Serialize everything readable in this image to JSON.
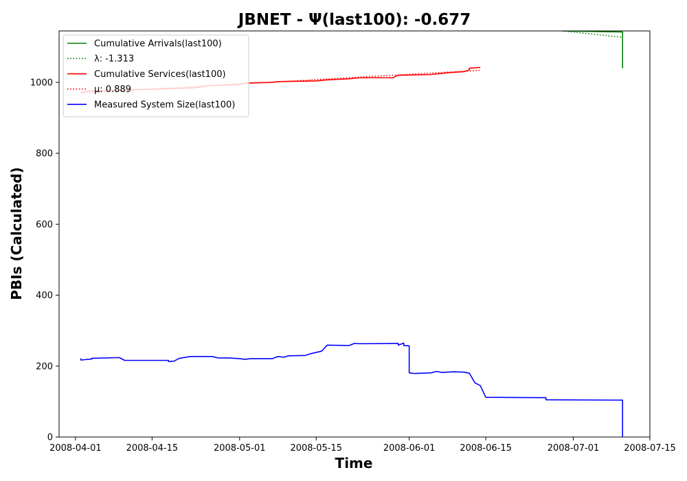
{
  "chart_data": {
    "type": "line",
    "title": "JBNET -  Ψ(last100): -0.677",
    "xlabel": "Time",
    "ylabel": "PBIs (Calculated)",
    "x_type": "date",
    "xlim": [
      "2008-03-29",
      "2008-07-15"
    ],
    "ylim": [
      0,
      1145
    ],
    "grid": false,
    "legend_position": "top-left",
    "x_ticks": [
      "2008-04-01",
      "2008-04-15",
      "2008-05-01",
      "2008-05-15",
      "2008-06-01",
      "2008-06-15",
      "2008-07-01",
      "2008-07-15"
    ],
    "y_ticks": [
      0,
      200,
      400,
      600,
      800,
      1000
    ],
    "series": [
      {
        "name": "Cumulative Arrivals(last100)",
        "color": "#008000",
        "style": "solid",
        "points": [
          [
            "2008-06-29",
            1145
          ],
          [
            "2008-07-10",
            1142
          ],
          [
            "2008-07-10",
            1040
          ]
        ]
      },
      {
        "name": "λ: -1.313",
        "color": "#008000",
        "style": "dotted",
        "points": [
          [
            "2008-06-29",
            1145
          ],
          [
            "2008-07-10",
            1127
          ]
        ]
      },
      {
        "name": "Cumulative Services(last100)",
        "color": "#ff0000",
        "style": "solid",
        "points": [
          [
            "2008-04-02",
            970
          ],
          [
            "2008-04-03",
            975
          ],
          [
            "2008-04-09",
            978
          ],
          [
            "2008-04-16",
            981
          ],
          [
            "2008-04-23",
            985
          ],
          [
            "2008-04-25",
            990
          ],
          [
            "2008-05-01",
            994
          ],
          [
            "2008-05-02",
            998
          ],
          [
            "2008-05-07",
            1000
          ],
          [
            "2008-05-08",
            1002
          ],
          [
            "2008-05-15",
            1004
          ],
          [
            "2008-05-17",
            1007
          ],
          [
            "2008-05-21",
            1010
          ],
          [
            "2008-05-23",
            1013
          ],
          [
            "2008-05-29",
            1013
          ],
          [
            "2008-05-30",
            1020
          ],
          [
            "2008-06-05",
            1022
          ],
          [
            "2008-06-08",
            1027
          ],
          [
            "2008-06-11",
            1030
          ],
          [
            "2008-06-12",
            1035
          ],
          [
            "2008-06-12",
            1040
          ],
          [
            "2008-06-14",
            1042
          ]
        ]
      },
      {
        "name": "μ: 0.889",
        "color": "#ff0000",
        "style": "dotted",
        "points": [
          [
            "2008-04-02",
            970
          ],
          [
            "2008-06-14",
            1034
          ]
        ]
      },
      {
        "name": "Measured System Size(last100)",
        "color": "#0000ff",
        "style": "solid",
        "points": [
          [
            "2008-04-02",
            222
          ],
          [
            "2008-04-02",
            217
          ],
          [
            "2008-04-04",
            220
          ],
          [
            "2008-04-04",
            222
          ],
          [
            "2008-04-09",
            224
          ],
          [
            "2008-04-10",
            216
          ],
          [
            "2008-04-18",
            216
          ],
          [
            "2008-04-18",
            213
          ],
          [
            "2008-04-19",
            214
          ],
          [
            "2008-04-20",
            222
          ],
          [
            "2008-04-22",
            227
          ],
          [
            "2008-04-26",
            227
          ],
          [
            "2008-04-27",
            223
          ],
          [
            "2008-04-29",
            223
          ],
          [
            "2008-05-01",
            221
          ],
          [
            "2008-05-02",
            219
          ],
          [
            "2008-05-03",
            221
          ],
          [
            "2008-05-07",
            221
          ],
          [
            "2008-05-08",
            227
          ],
          [
            "2008-05-09",
            225
          ],
          [
            "2008-05-10",
            229
          ],
          [
            "2008-05-13",
            230
          ],
          [
            "2008-05-14",
            235
          ],
          [
            "2008-05-16",
            242
          ],
          [
            "2008-05-17",
            259
          ],
          [
            "2008-05-21",
            258
          ],
          [
            "2008-05-22",
            264
          ],
          [
            "2008-05-23",
            263
          ],
          [
            "2008-05-30",
            264
          ],
          [
            "2008-05-30",
            259
          ],
          [
            "2008-05-31",
            265
          ],
          [
            "2008-05-31",
            258
          ],
          [
            "2008-06-01",
            257
          ],
          [
            "2008-06-01",
            181
          ],
          [
            "2008-06-02",
            179
          ],
          [
            "2008-06-05",
            181
          ],
          [
            "2008-06-06",
            185
          ],
          [
            "2008-06-07",
            182
          ],
          [
            "2008-06-09",
            184
          ],
          [
            "2008-06-11",
            183
          ],
          [
            "2008-06-12",
            180
          ],
          [
            "2008-06-13",
            153
          ],
          [
            "2008-06-14",
            145
          ],
          [
            "2008-06-15",
            112
          ],
          [
            "2008-06-26",
            111
          ],
          [
            "2008-06-26",
            105
          ],
          [
            "2008-07-10",
            104
          ],
          [
            "2008-07-10",
            0
          ]
        ]
      }
    ]
  }
}
